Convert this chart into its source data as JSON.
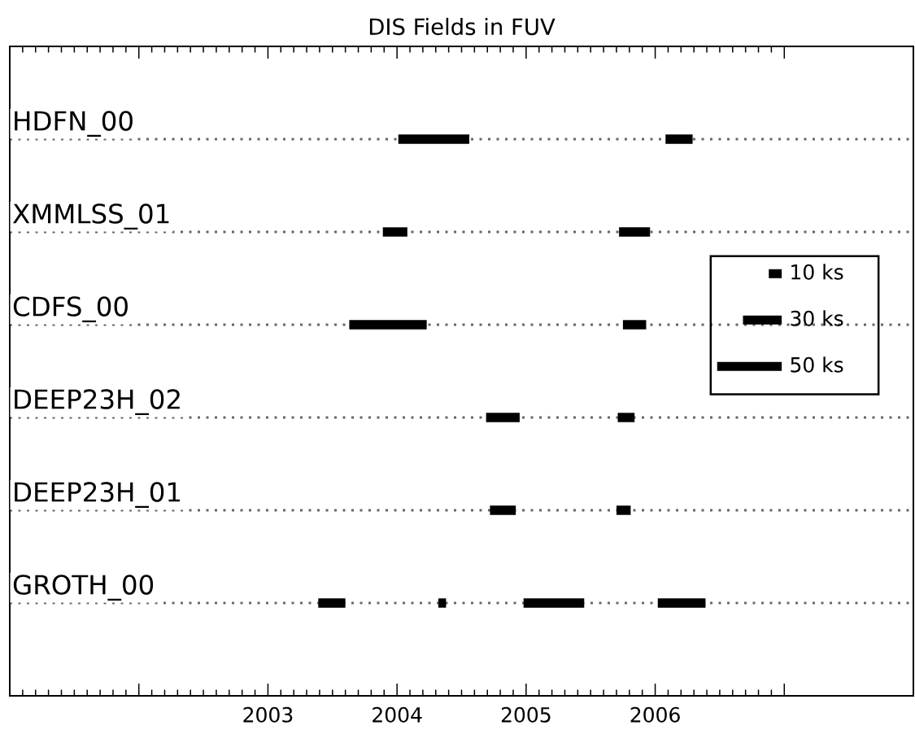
{
  "chart_data": {
    "type": "bar",
    "orientation": "horizontal",
    "title": "DIS Fields in FUV",
    "categories": [
      "HDFN_00",
      "XMMLSS_01",
      "CDFS_00",
      "DEEP23H_02",
      "DEEP23H_01",
      "GROTH_00"
    ],
    "series": [
      {
        "color": "#000000",
        "base": [
          2004.01,
          2003.89,
          2003.63,
          2004.69,
          2004.72,
          2003.39
        ],
        "values": [
          0.55,
          0.19,
          0.6,
          0.26,
          0.2,
          0.21
        ]
      },
      {
        "color": "#000000",
        "base": [
          2006.08,
          2005.72,
          2005.75,
          2005.71,
          2005.7,
          2004.32
        ],
        "values": [
          0.21,
          0.24,
          0.18,
          0.13,
          0.11,
          0.06
        ]
      },
      {
        "color": "#000000",
        "base": [
          null,
          null,
          null,
          null,
          null,
          2004.98
        ],
        "values": [
          null,
          null,
          null,
          null,
          null,
          0.47
        ]
      },
      {
        "color": "#000000",
        "base": [
          null,
          null,
          null,
          null,
          null,
          2006.02
        ],
        "values": [
          null,
          null,
          null,
          null,
          null,
          0.37
        ]
      }
    ],
    "xlim": [
      2001,
      2008
    ],
    "xticks": [
      {
        "value": 2001,
        "label": null
      },
      {
        "value": 2002,
        "label": null
      },
      2003,
      2004,
      2005,
      2006,
      {
        "value": 2007,
        "label": null
      }
    ],
    "grid": "y",
    "annotations": [
      "10 ks",
      "30 ks",
      "50 ks"
    ]
  }
}
